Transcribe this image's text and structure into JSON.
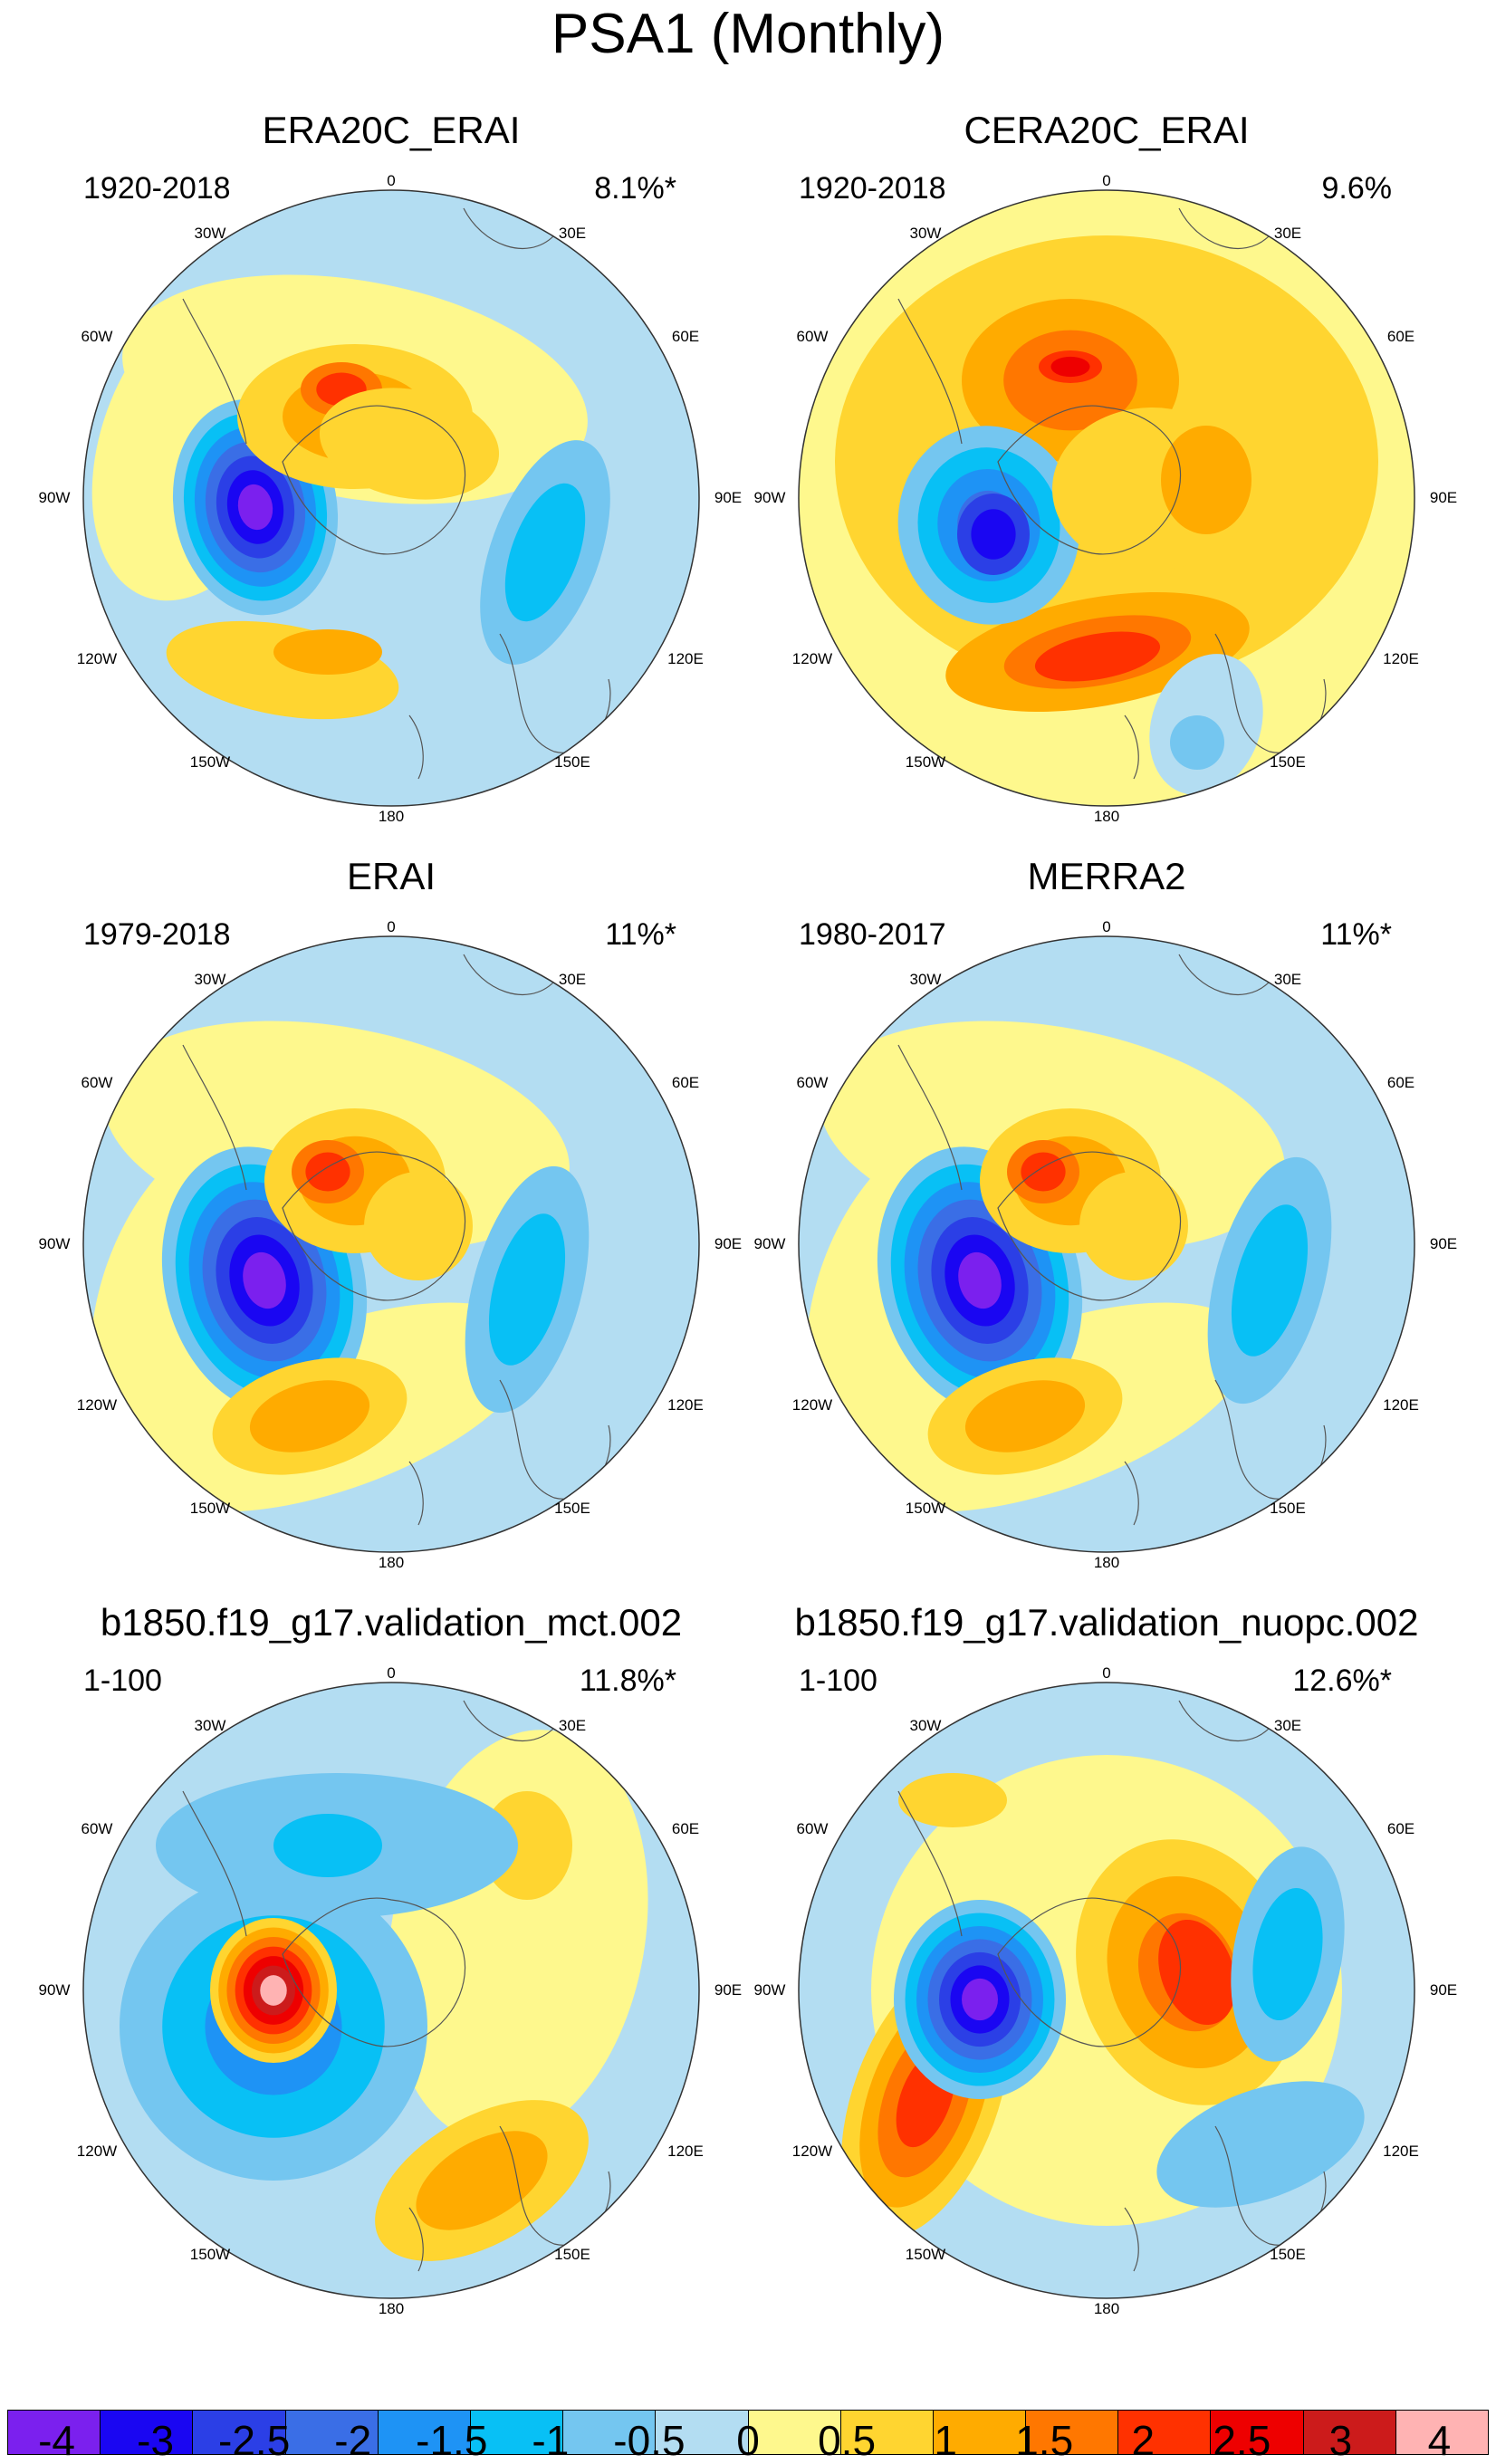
{
  "title": "PSA1 (Monthly)",
  "panels": [
    {
      "title": "ERA20C_ERAI",
      "period": "1920-2018",
      "percent": "8.1%*",
      "pattern": "obs_era20c"
    },
    {
      "title": "CERA20C_ERAI",
      "period": "1920-2018",
      "percent": "9.6%",
      "pattern": "obs_cera20c"
    },
    {
      "title": "ERAI",
      "period": "1979-2018",
      "percent": "11%*",
      "pattern": "obs_erai"
    },
    {
      "title": "MERRA2",
      "period": "1980-2017",
      "percent": "11%*",
      "pattern": "obs_merra2"
    },
    {
      "title": "b1850.f19_g17.validation_mct.002",
      "period": "1-100",
      "percent": "11.8%*",
      "pattern": "model_mct"
    },
    {
      "title": "b1850.f19_g17.validation_nuopc.002",
      "period": "1-100",
      "percent": "12.6%*",
      "pattern": "model_nuopc"
    }
  ],
  "map_labels": {
    "top": "0",
    "bottom": "180",
    "left": "90W",
    "right": "90E",
    "upper_left_inner": "60W",
    "upper_left_outer": "30W",
    "upper_right_inner": "60E",
    "upper_right_outer": "30E",
    "lower_left_inner": "120W",
    "lower_left_outer": "150W",
    "lower_right_inner": "120E",
    "lower_right_outer": "150E"
  },
  "colorbar": {
    "labels": [
      "-4",
      "-3",
      "-2.5",
      "-2",
      "-1.5",
      "-1",
      "-0.5",
      "0",
      "0.5",
      "1",
      "1.5",
      "2",
      "2.5",
      "3",
      "4"
    ],
    "colors": [
      "#7b20ee",
      "#1a06f2",
      "#2b3fe6",
      "#3a6ee6",
      "#1e93f5",
      "#08c0f5",
      "#74c6f0",
      "#b3ddf2",
      "#fef88d",
      "#ffd530",
      "#ffab00",
      "#ff7700",
      "#ff3100",
      "#ee0000",
      "#cc1b1b",
      "#ffb3b3"
    ]
  }
}
